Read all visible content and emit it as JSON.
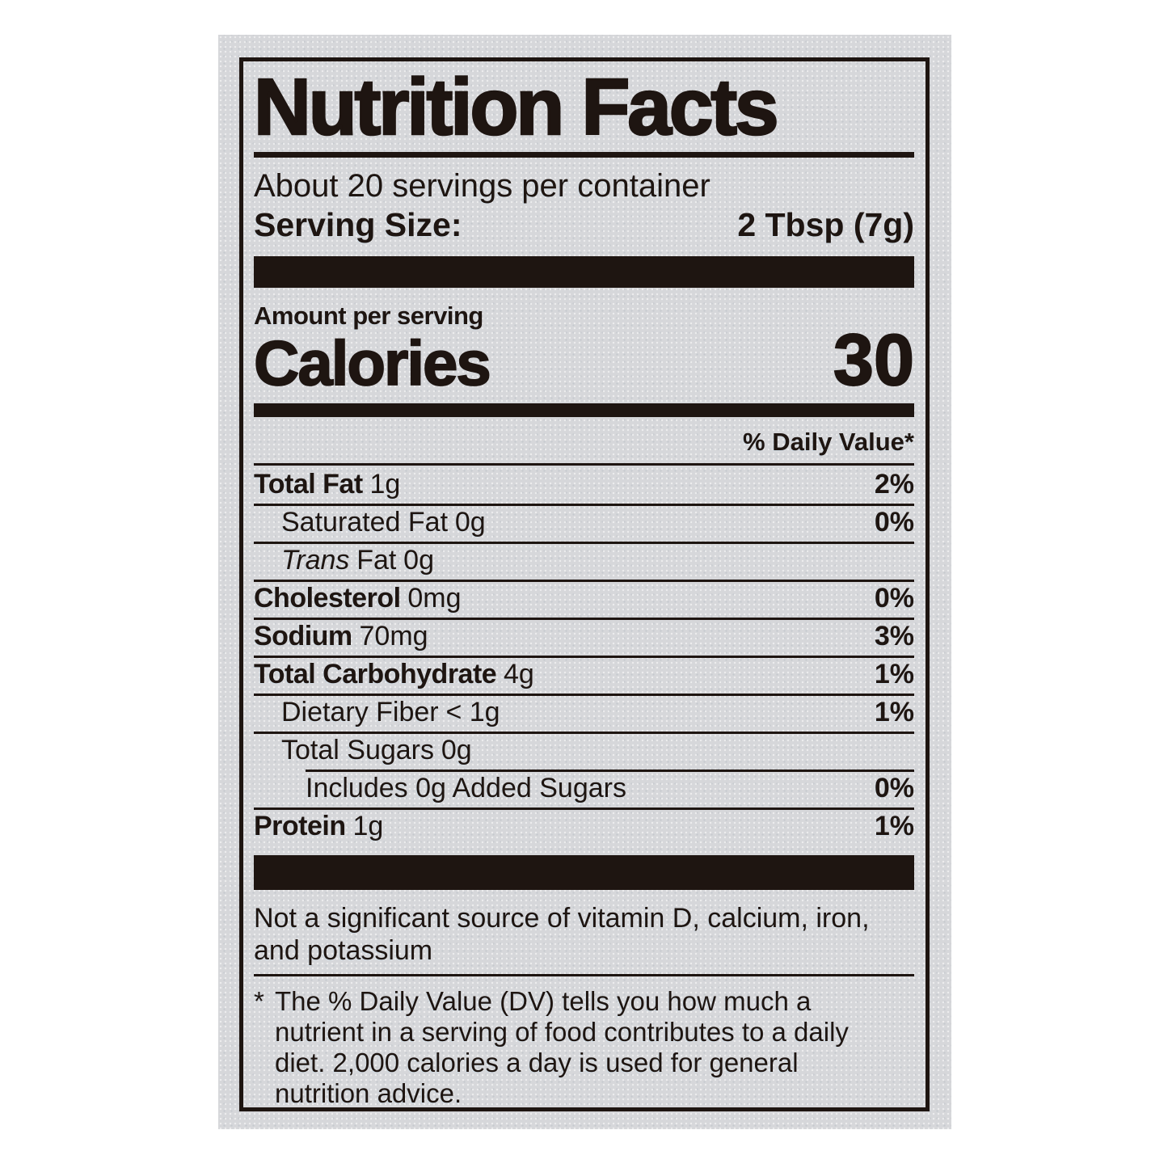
{
  "colors": {
    "ink": "#1e1511",
    "label_background": "#d6d7da",
    "page_background": "#ffffff"
  },
  "label": {
    "title": "Nutrition Facts",
    "servings_per_container": "About 20 servings per container",
    "serving_size_label": "Serving Size:",
    "serving_size_value": "2 Tbsp (7g)",
    "amount_per_serving": "Amount per serving",
    "calories_label": "Calories",
    "calories_value": "30",
    "daily_value_header": "% Daily Value*",
    "nutrients": [
      {
        "name": "Total Fat",
        "amount": "1g",
        "dv": "2%",
        "indent": 0,
        "bold": true,
        "sep": "none"
      },
      {
        "name": "Saturated Fat",
        "amount": "0g",
        "dv": "0%",
        "indent": 1,
        "bold": false,
        "sep": "full"
      },
      {
        "name_italic": "Trans",
        "name": "Fat",
        "amount": "0g",
        "dv": "",
        "indent": 1,
        "bold": false,
        "sep": "full"
      },
      {
        "name": "Cholesterol",
        "amount": "0mg",
        "dv": "0%",
        "indent": 0,
        "bold": true,
        "sep": "full"
      },
      {
        "name": "Sodium",
        "amount": "70mg",
        "dv": "3%",
        "indent": 0,
        "bold": true,
        "sep": "full"
      },
      {
        "name": "Total Carbohydrate",
        "amount": "4g",
        "dv": "1%",
        "indent": 0,
        "bold": true,
        "sep": "full"
      },
      {
        "name": "Dietary Fiber",
        "amount": "< 1g",
        "dv": "1%",
        "indent": 1,
        "bold": false,
        "sep": "full"
      },
      {
        "name": "Total Sugars",
        "amount": "0g",
        "dv": "",
        "indent": 1,
        "bold": false,
        "sep": "full"
      },
      {
        "name": "Includes 0g Added Sugars",
        "amount": "",
        "dv": "0%",
        "indent": 2,
        "bold": false,
        "sep": "indent"
      },
      {
        "name": "Protein",
        "amount": "1g",
        "dv": "1%",
        "indent": 0,
        "bold": true,
        "sep": "full"
      }
    ],
    "not_significant": "Not a significant source of vitamin D, calcium, iron, and potassium",
    "footnote_marker": "*",
    "footnote": "The % Daily Value (DV) tells you how much a nutrient in a serving of food contributes to a daily diet. 2,000 calories a day is used for general nutrition advice."
  }
}
